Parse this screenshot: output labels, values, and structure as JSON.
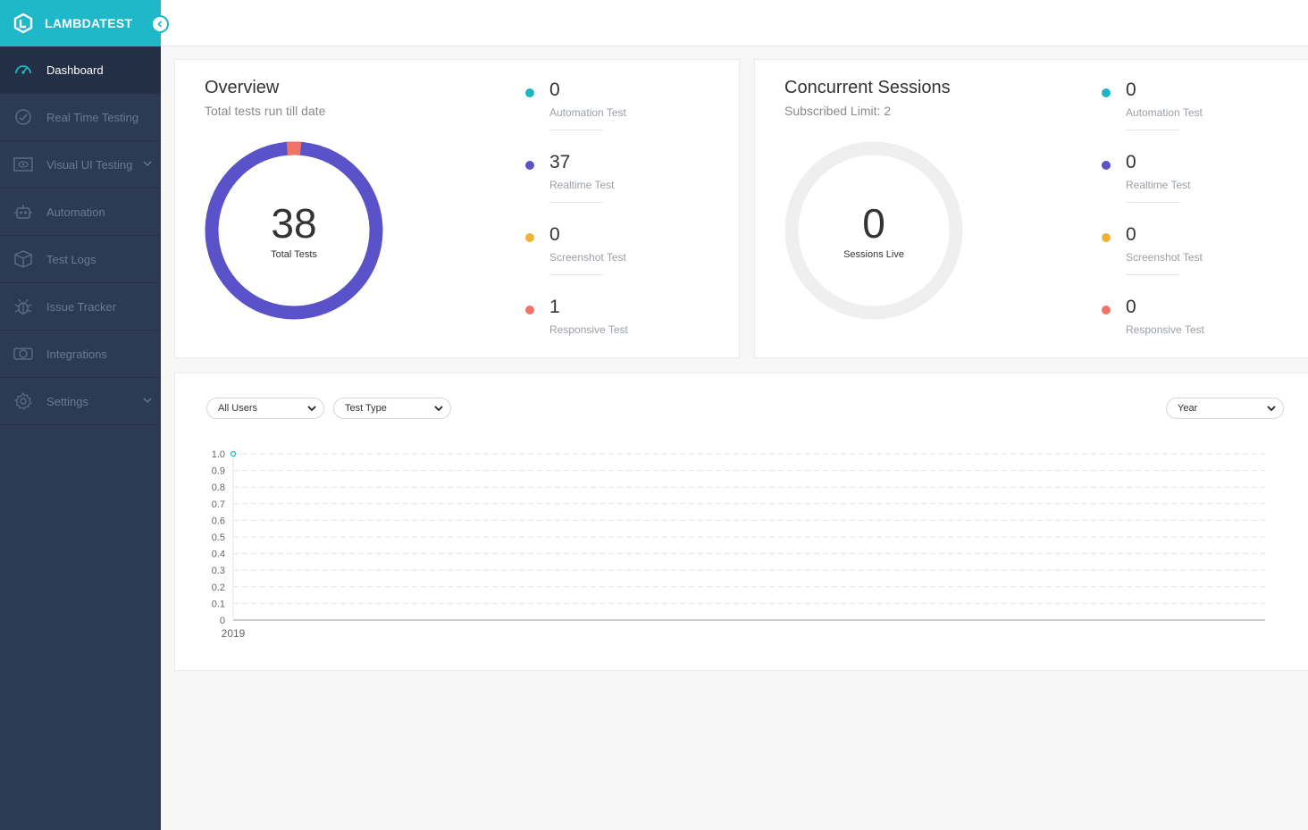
{
  "brand": {
    "name": "LAMBDATEST"
  },
  "sidebar": {
    "items": [
      {
        "label": "Dashboard",
        "icon": "dashboard-gauge-icon",
        "active": true
      },
      {
        "label": "Real Time Testing",
        "icon": "clock-icon"
      },
      {
        "label": "Visual UI Testing",
        "icon": "eye-screen-icon",
        "has_children": true
      },
      {
        "label": "Automation",
        "icon": "robot-icon"
      },
      {
        "label": "Test Logs",
        "icon": "box-icon"
      },
      {
        "label": "Issue Tracker",
        "icon": "bug-icon"
      },
      {
        "label": "Integrations",
        "icon": "integrations-icon"
      },
      {
        "label": "Settings",
        "icon": "gear-icon",
        "has_children": true
      }
    ]
  },
  "overview": {
    "title": "Overview",
    "subtitle": "Total tests run till date",
    "total": "38",
    "total_label": "Total Tests",
    "legend": [
      {
        "value": "0",
        "name": "Automation Test",
        "color": "#1db5c4"
      },
      {
        "value": "37",
        "name": "Realtime Test",
        "color": "#5a52c8"
      },
      {
        "value": "0",
        "name": "Screenshot Test",
        "color": "#f0b13b"
      },
      {
        "value": "1",
        "name": "Responsive Test",
        "color": "#ef7466"
      }
    ]
  },
  "sessions": {
    "title": "Concurrent Sessions",
    "subtitle": "Subscribed Limit: 2",
    "live": "0",
    "live_label": "Sessions Live",
    "legend": [
      {
        "value": "0",
        "name": "Automation Test",
        "color": "#1db5c4"
      },
      {
        "value": "0",
        "name": "Realtime Test",
        "color": "#5a52c8"
      },
      {
        "value": "0",
        "name": "Screenshot Test",
        "color": "#f0b13b"
      },
      {
        "value": "0",
        "name": "Responsive Test",
        "color": "#ef7466"
      }
    ]
  },
  "filters": {
    "users": "All Users",
    "test_type": "Test Type",
    "period": "Year"
  },
  "chart_data": {
    "type": "line",
    "x": [
      "2019"
    ],
    "series": [
      {
        "values": [
          1.0
        ],
        "color": "#1db5c4"
      }
    ],
    "ylim": [
      0,
      1.0
    ],
    "yticks": [
      "0",
      "0.1",
      "0.2",
      "0.3",
      "0.4",
      "0.5",
      "0.6",
      "0.7",
      "0.8",
      "0.9",
      "1.0"
    ],
    "grid": true,
    "title": "",
    "xlabel": "",
    "ylabel": ""
  }
}
